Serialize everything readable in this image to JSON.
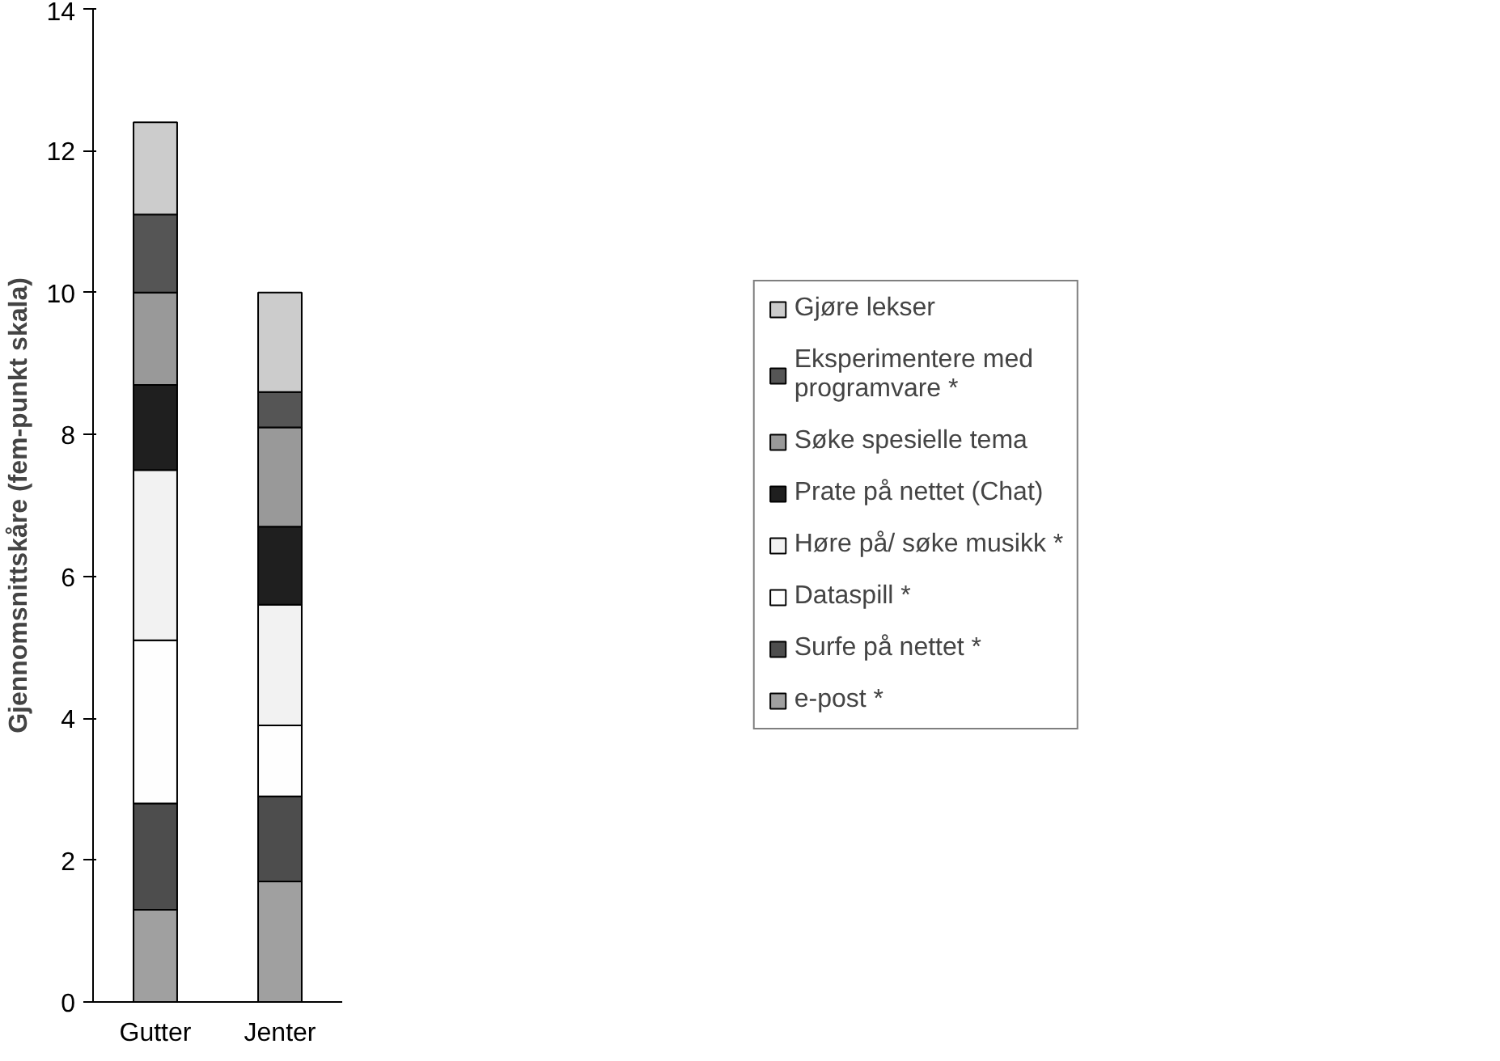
{
  "chart_data": {
    "type": "bar",
    "stacked": true,
    "ylabel": "Gjennomsnittskåre (fem-punkt skala)",
    "categories": [
      "Gutter",
      "Jenter"
    ],
    "series": [
      {
        "name": "e-post *",
        "color": "#a0a0a0",
        "values": [
          1.3,
          1.7
        ]
      },
      {
        "name": "Surfe på nettet *",
        "color": "#4d4d4d",
        "values": [
          1.5,
          1.2
        ]
      },
      {
        "name": "Dataspill *",
        "color": "#fefefe",
        "values": [
          2.3,
          1.0
        ]
      },
      {
        "name": "Høre på/ søke musikk *",
        "color": "#f2f2f2",
        "values": [
          2.4,
          1.7
        ]
      },
      {
        "name": "Prate på nettet (Chat)",
        "color": "#1f1f1f",
        "values": [
          1.2,
          1.1
        ]
      },
      {
        "name": "Søke spesielle tema",
        "color": "#999999",
        "values": [
          1.3,
          1.4
        ]
      },
      {
        "name": "Eksperimentere med\nprogramvare *",
        "color": "#555555",
        "values": [
          1.1,
          0.5
        ]
      },
      {
        "name": "Gjøre lekser",
        "color": "#cccccc",
        "values": [
          1.3,
          1.4
        ]
      }
    ],
    "ylim": [
      0,
      14
    ],
    "yticks": [
      0,
      2,
      4,
      6,
      8,
      10,
      12,
      14
    ],
    "grid": false,
    "legend": "right"
  }
}
